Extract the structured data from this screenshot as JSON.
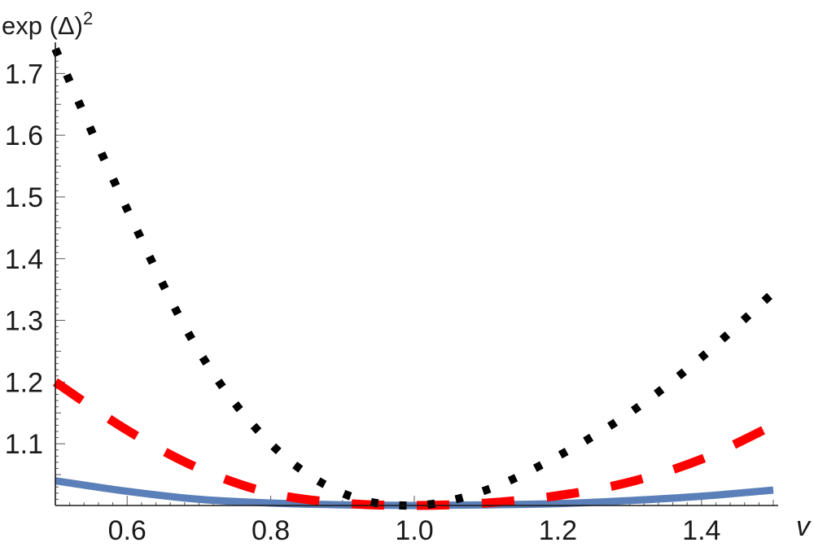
{
  "chart_data": {
    "type": "line",
    "title": "",
    "xlabel": "v",
    "ylabel_main": "exp (Δ)",
    "ylabel_sup": "2",
    "xlim": [
      0.5,
      1.5
    ],
    "ylim": [
      1.0,
      1.75
    ],
    "x_ticks": [
      {
        "value": 0.6,
        "label": "0.6"
      },
      {
        "value": 0.8,
        "label": "0.8"
      },
      {
        "value": 1.0,
        "label": "1.0"
      },
      {
        "value": 1.2,
        "label": "1.2"
      },
      {
        "value": 1.4,
        "label": "1.4"
      }
    ],
    "y_ticks": [
      {
        "value": 1.1,
        "label": "1.1"
      },
      {
        "value": 1.2,
        "label": "1.2"
      },
      {
        "value": 1.3,
        "label": "1.3"
      },
      {
        "value": 1.4,
        "label": "1.4"
      },
      {
        "value": 1.5,
        "label": "1.5"
      },
      {
        "value": 1.6,
        "label": "1.6"
      },
      {
        "value": 1.7,
        "label": "1.7"
      }
    ],
    "grid": false,
    "legend": "none",
    "series": [
      {
        "style": "solid",
        "color": "#5b7fb8",
        "x": [
          0.5,
          0.6,
          0.7,
          0.8,
          0.9,
          1.0,
          1.1,
          1.2,
          1.3,
          1.4,
          1.5
        ],
        "y": [
          1.04,
          1.023,
          1.01,
          1.004,
          1.001,
          1.0,
          1.001,
          1.003,
          1.008,
          1.015,
          1.025
        ]
      },
      {
        "style": "dashed",
        "color": "#ff0000",
        "x": [
          0.5,
          0.6,
          0.7,
          0.8,
          0.9,
          1.0,
          1.1,
          1.2,
          1.3,
          1.4,
          1.5
        ],
        "y": [
          1.2,
          1.122,
          1.06,
          1.02,
          1.004,
          1.0,
          1.004,
          1.016,
          1.038,
          1.075,
          1.13
        ]
      },
      {
        "style": "dotted",
        "color": "#000000",
        "x": [
          0.5,
          0.6,
          0.7,
          0.8,
          0.9,
          1.0,
          1.1,
          1.2,
          1.3,
          1.4,
          1.5
        ],
        "y": [
          1.74,
          1.48,
          1.25,
          1.1,
          1.02,
          1.0,
          1.025,
          1.08,
          1.15,
          1.24,
          1.345
        ]
      }
    ]
  }
}
